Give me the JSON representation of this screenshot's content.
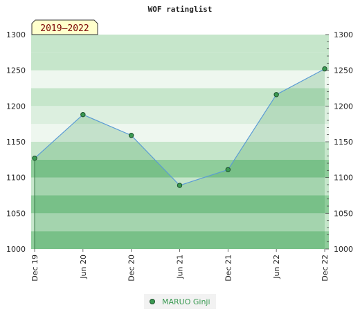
{
  "chart_data": {
    "type": "area",
    "title": "WOF ratinglist",
    "period_label": "2019–2022",
    "xlabel": "",
    "ylabel": "",
    "x_ticks": [
      "Dec 19",
      "Jun 20",
      "Dec 20",
      "Jun 21",
      "Dec 21",
      "Jun 22",
      "Dec 22"
    ],
    "ylim": [
      1000,
      1300
    ],
    "y_ticks": [
      1000,
      1050,
      1100,
      1150,
      1200,
      1250,
      1300
    ],
    "grid": false,
    "legend": "bottom-center",
    "series": [
      {
        "name": "MARUO Ginji",
        "x": [
          "Dec 19",
          "Jun 20",
          "Dec 20",
          "Jun 21",
          "Dec 21",
          "Jun 22",
          "Dec 22"
        ],
        "values": [
          1127,
          1188,
          1159,
          1089,
          1111,
          1216,
          1252
        ]
      }
    ],
    "colors": {
      "line": "#5b9bd5",
      "marker_fill": "#3a9a52",
      "marker_stroke": "#1b4f2a",
      "area_tint": "#1f8a3a",
      "band_light": "#eef7ef",
      "band_mid": "#c6e6cb",
      "band_dark": "#8fcd9b",
      "legend_text": "#3a9a52",
      "period_fill": "#ffffcc",
      "period_text": "#7a0000"
    }
  }
}
